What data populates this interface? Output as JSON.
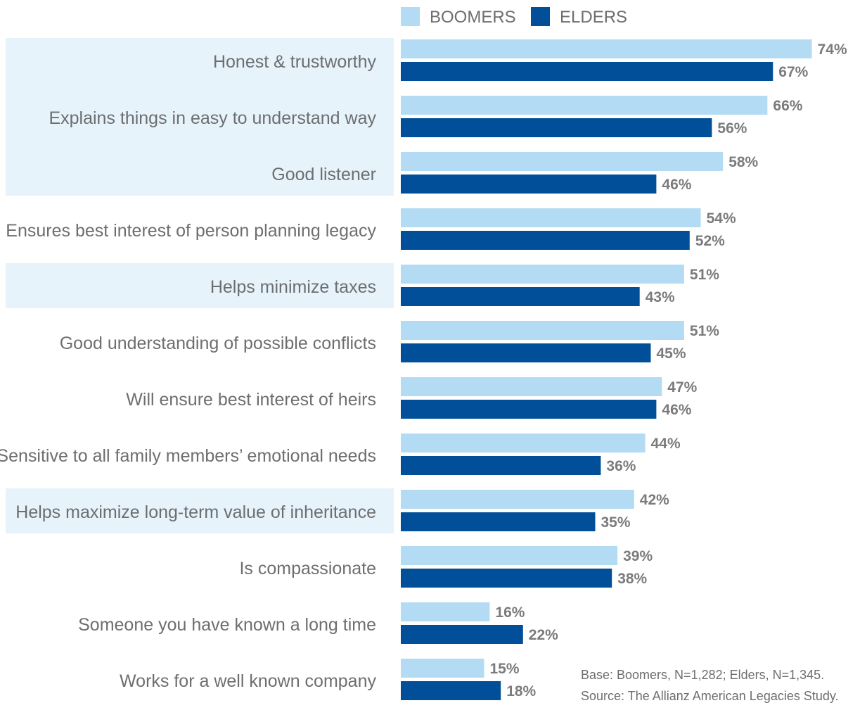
{
  "chart_data": {
    "type": "bar",
    "orientation": "horizontal",
    "legend_position": "top",
    "categories": [
      "Honest & trustworthy",
      "Explains things in easy to understand way",
      "Good listener",
      "Ensures best interest of person planning legacy",
      "Helps minimize taxes",
      "Good understanding of possible conflicts",
      "Will ensure best interest of heirs",
      "Sensitive to all family members’ emotional needs",
      "Helps maximize long-term value of inheritance",
      "Is compassionate",
      "Someone you have known a long time",
      "Works for a well known company"
    ],
    "highlighted": [
      0,
      1,
      2,
      4,
      8
    ],
    "series": [
      {
        "name": "BOOMERS",
        "color": "#b3dcf4",
        "values": [
          74,
          66,
          58,
          54,
          51,
          51,
          47,
          44,
          42,
          39,
          16,
          15
        ],
        "labels": [
          "74%",
          "66%",
          "58%",
          "54%",
          "51%",
          "51%",
          "47%",
          "44%",
          "42%",
          "39%",
          "16%",
          "15%"
        ]
      },
      {
        "name": "ELDERS",
        "color": "#004f98",
        "values": [
          67,
          56,
          46,
          52,
          43,
          45,
          46,
          36,
          35,
          38,
          22,
          18
        ],
        "labels": [
          "67%",
          "56%",
          "46%",
          "52%",
          "43%",
          "45%",
          "46%",
          "36%",
          "35%",
          "38%",
          "22%",
          "18%"
        ]
      }
    ],
    "highlight_color": "#e6f3fb",
    "notes": [
      "Base: Boomers, N=1,282; Elders, N=1,345.",
      "Source: The Allianz American Legacies Study."
    ]
  }
}
